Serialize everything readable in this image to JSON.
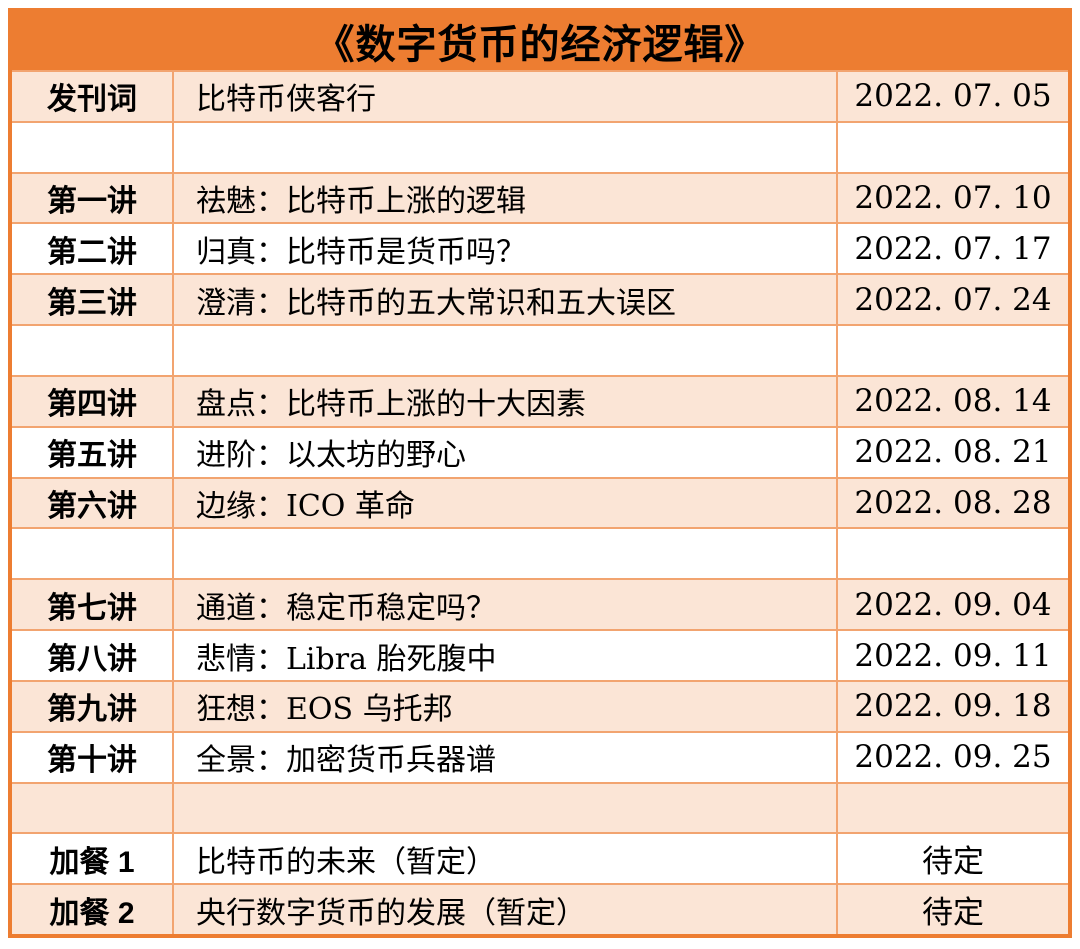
{
  "colors": {
    "header_orange": "#ED7D31",
    "row_tint": "#FBE5D6",
    "grid_line": "#F2A470",
    "text": "#000000"
  },
  "table": {
    "title": "《数字货币的经济逻辑》",
    "rows": [
      {
        "label": "发刊词",
        "title": "比特币侠客行",
        "date": "2022.07.05"
      },
      {
        "label": "",
        "title": "",
        "date": ""
      },
      {
        "label": "第一讲",
        "title": "祛魅：比特币上涨的逻辑",
        "date": "2022.07.10"
      },
      {
        "label": "第二讲",
        "title": "归真：比特币是货币吗？",
        "date": "2022.07.17"
      },
      {
        "label": "第三讲",
        "title": "澄清：比特币的五大常识和五大误区",
        "date": "2022.07.24"
      },
      {
        "label": "",
        "title": "",
        "date": ""
      },
      {
        "label": "第四讲",
        "title": "盘点：比特币上涨的十大因素",
        "date": "2022.08.14"
      },
      {
        "label": "第五讲",
        "title": "进阶：以太坊的野心",
        "date": "2022.08.21"
      },
      {
        "label": "第六讲",
        "title": "边缘：ICO 革命",
        "date": "2022.08.28"
      },
      {
        "label": "",
        "title": "",
        "date": ""
      },
      {
        "label": "第七讲",
        "title": "通道：稳定币稳定吗？",
        "date": "2022.09.04"
      },
      {
        "label": "第八讲",
        "title": "悲情：Libra 胎死腹中",
        "date": "2022.09.11"
      },
      {
        "label": "第九讲",
        "title": "狂想：EOS 乌托邦",
        "date": "2022.09.18"
      },
      {
        "label": "第十讲",
        "title": "全景：加密货币兵器谱",
        "date": "2022.09.25"
      },
      {
        "label": "",
        "title": "",
        "date": ""
      },
      {
        "label": "加餐 1",
        "title": "比特币的未来（暂定）",
        "date": "待定"
      },
      {
        "label": "加餐 2",
        "title": "央行数字货币的发展（暂定）",
        "date": "待定"
      }
    ]
  }
}
